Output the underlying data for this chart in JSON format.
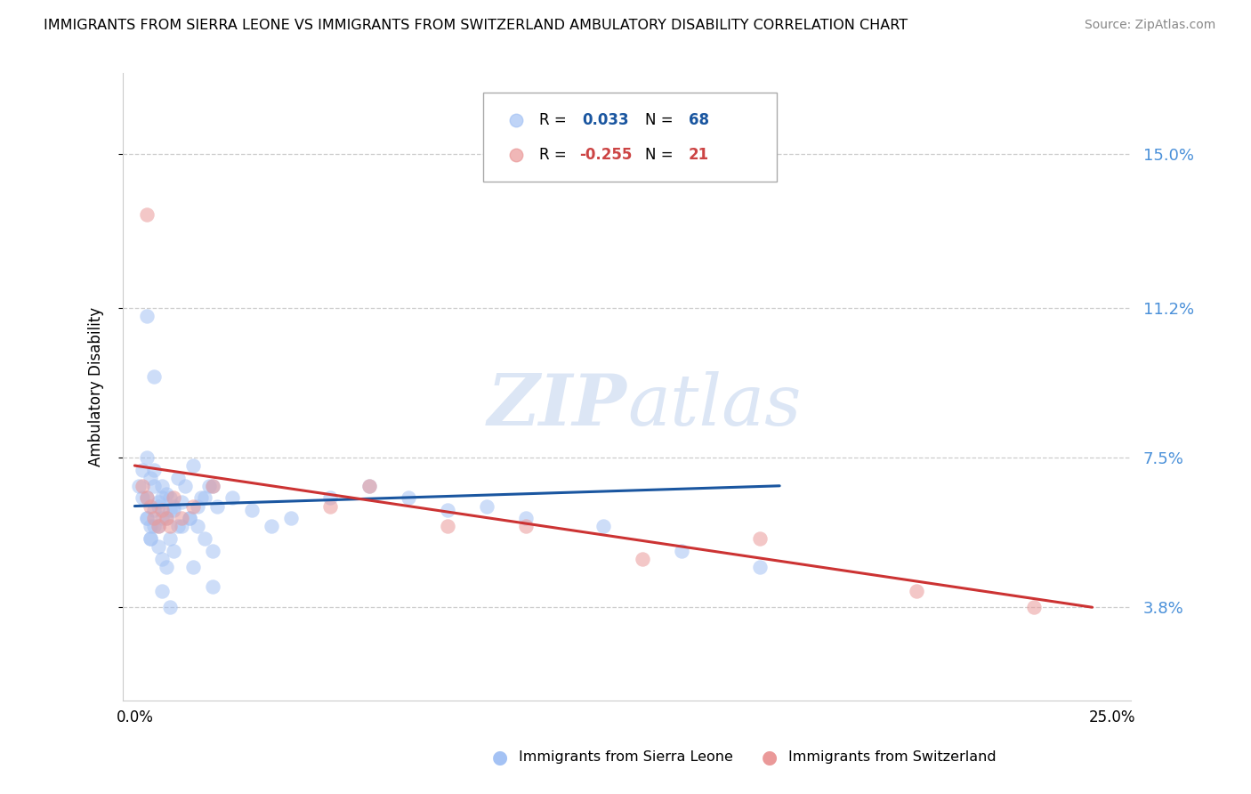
{
  "title": "IMMIGRANTS FROM SIERRA LEONE VS IMMIGRANTS FROM SWITZERLAND AMBULATORY DISABILITY CORRELATION CHART",
  "source": "Source: ZipAtlas.com",
  "ylabel": "Ambulatory Disability",
  "ytick_labels": [
    "3.8%",
    "7.5%",
    "11.2%",
    "15.0%"
  ],
  "ytick_values": [
    0.038,
    0.075,
    0.112,
    0.15
  ],
  "xlim": [
    -0.003,
    0.255
  ],
  "ylim": [
    0.015,
    0.17
  ],
  "sierra_leone_color": "#a4c2f4",
  "switzerland_color": "#ea9999",
  "trend_sierra_leone_color": "#1a56a0",
  "trend_switzerland_color": "#cc3333",
  "background_color": "#ffffff",
  "grid_color": "#c8c8c8",
  "R_sierra": 0.033,
  "N_sierra": 68,
  "R_swiss": -0.255,
  "N_swiss": 21,
  "yticklabel_color": "#4a90d9",
  "legend_blue_color": "#1a56a0",
  "legend_pink_color": "#cc4444",
  "watermark_color": "#dce6f5",
  "sl_x": [
    0.001,
    0.002,
    0.003,
    0.004,
    0.005,
    0.006,
    0.007,
    0.003,
    0.005,
    0.004,
    0.006,
    0.008,
    0.007,
    0.009,
    0.01,
    0.011,
    0.003,
    0.005,
    0.007,
    0.009,
    0.011,
    0.013,
    0.015,
    0.017,
    0.019,
    0.021,
    0.004,
    0.006,
    0.008,
    0.01,
    0.012,
    0.014,
    0.016,
    0.018,
    0.02,
    0.002,
    0.003,
    0.004,
    0.005,
    0.006,
    0.007,
    0.008,
    0.009,
    0.01,
    0.012,
    0.014,
    0.016,
    0.018,
    0.02,
    0.025,
    0.03,
    0.035,
    0.04,
    0.05,
    0.06,
    0.07,
    0.08,
    0.09,
    0.1,
    0.12,
    0.14,
    0.16,
    0.003,
    0.005,
    0.007,
    0.009,
    0.015,
    0.02
  ],
  "sl_y": [
    0.068,
    0.072,
    0.065,
    0.07,
    0.068,
    0.063,
    0.065,
    0.06,
    0.062,
    0.058,
    0.064,
    0.066,
    0.06,
    0.062,
    0.063,
    0.058,
    0.075,
    0.072,
    0.068,
    0.065,
    0.07,
    0.068,
    0.073,
    0.065,
    0.068,
    0.063,
    0.055,
    0.058,
    0.06,
    0.062,
    0.064,
    0.06,
    0.058,
    0.055,
    0.052,
    0.065,
    0.06,
    0.055,
    0.058,
    0.053,
    0.05,
    0.048,
    0.055,
    0.052,
    0.058,
    0.06,
    0.063,
    0.065,
    0.068,
    0.065,
    0.062,
    0.058,
    0.06,
    0.065,
    0.068,
    0.065,
    0.062,
    0.063,
    0.06,
    0.058,
    0.052,
    0.048,
    0.11,
    0.095,
    0.042,
    0.038,
    0.048,
    0.043
  ],
  "sw_x": [
    0.002,
    0.003,
    0.004,
    0.005,
    0.006,
    0.007,
    0.008,
    0.009,
    0.01,
    0.012,
    0.015,
    0.02,
    0.05,
    0.06,
    0.08,
    0.1,
    0.13,
    0.16,
    0.2,
    0.23,
    0.003
  ],
  "sw_y": [
    0.068,
    0.065,
    0.063,
    0.06,
    0.058,
    0.062,
    0.06,
    0.058,
    0.065,
    0.06,
    0.063,
    0.068,
    0.063,
    0.068,
    0.058,
    0.058,
    0.05,
    0.055,
    0.042,
    0.038,
    0.135
  ],
  "sl_trend_x": [
    0.0,
    0.165
  ],
  "sl_trend_y": [
    0.063,
    0.068
  ],
  "sw_trend_x": [
    0.0,
    0.245
  ],
  "sw_trend_y": [
    0.073,
    0.038
  ]
}
